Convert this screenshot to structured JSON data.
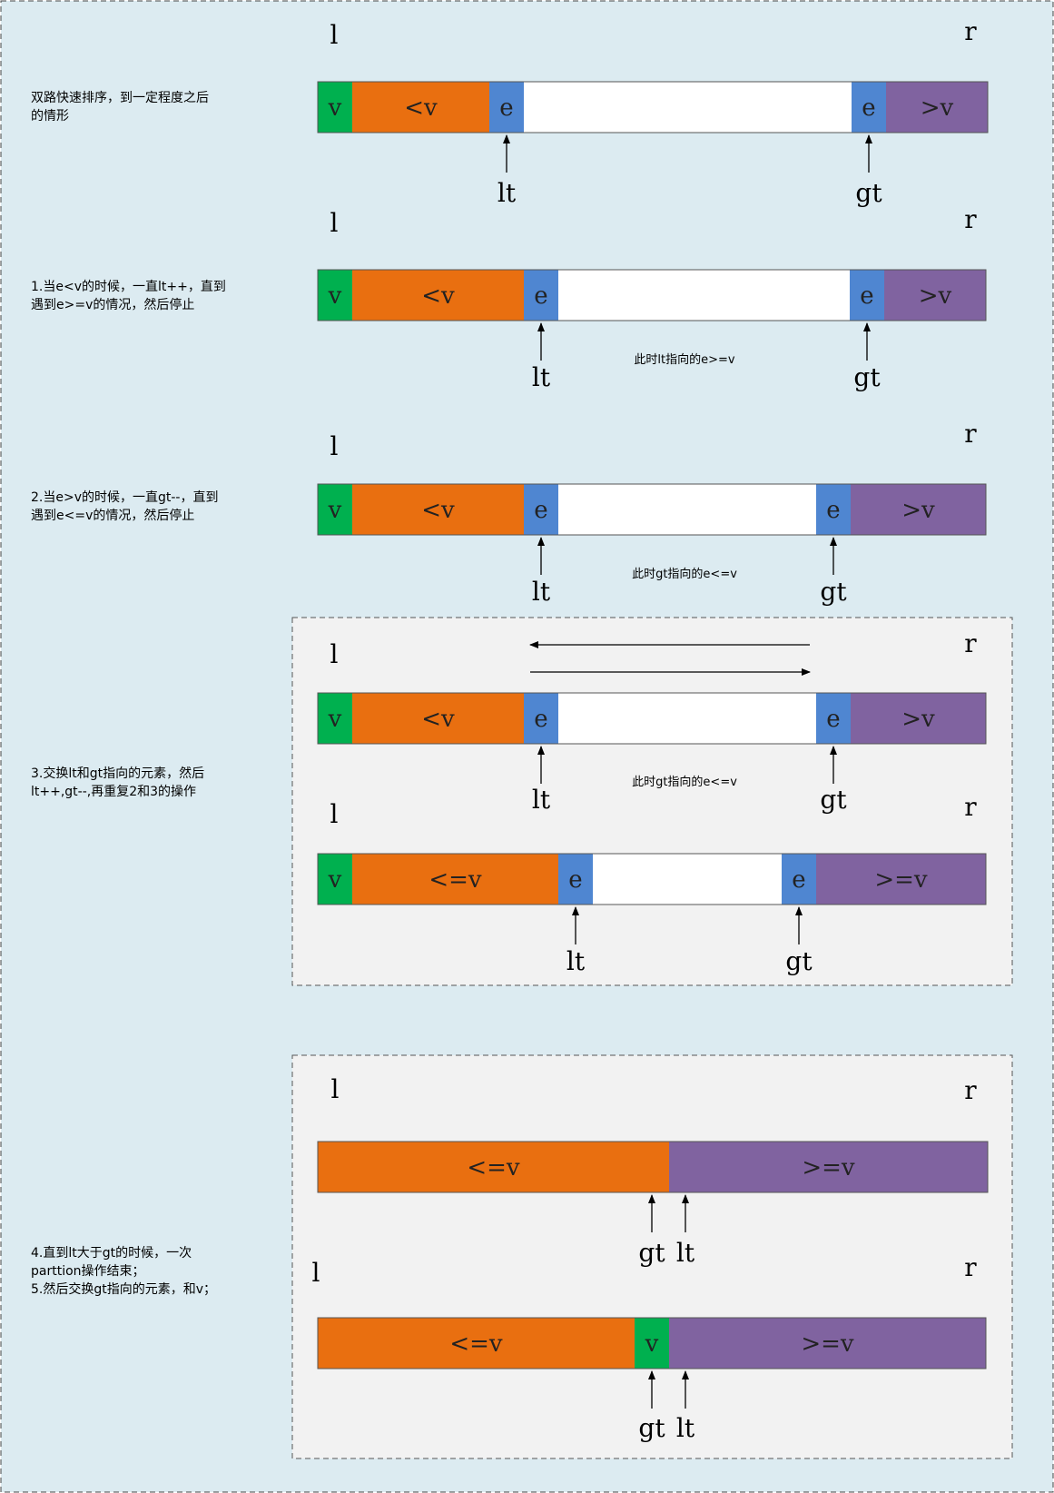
{
  "colors": {
    "background": "#dcebf1",
    "panel": "#f2f2f2",
    "v": "#00b04f",
    "lt_region": "#e96f10",
    "e": "#4f86d1",
    "unprocessed": "#ffffff",
    "gt_region": "#8063a0"
  },
  "boundary_labels": {
    "left": "l",
    "right": "r"
  },
  "pointer_labels": {
    "lt": "lt",
    "gt": "gt"
  },
  "steps": [
    {
      "description": [
        "双路快速排序，到一定程度之后",
        "的情形"
      ],
      "note": "",
      "segments": [
        {
          "label": "v",
          "color": "v"
        },
        {
          "label": "<v",
          "color": "lt_region"
        },
        {
          "label": "e",
          "color": "e"
        },
        {
          "label": "",
          "color": "unprocessed"
        },
        {
          "label": "e",
          "color": "e"
        },
        {
          "label": ">v",
          "color": "gt_region"
        }
      ]
    },
    {
      "description": [
        "1.当e<v的时候，一直lt++，直到",
        "遇到e>=v的情况，然后停止"
      ],
      "note": "此时lt指向的e>=v",
      "segments": [
        {
          "label": "v",
          "color": "v"
        },
        {
          "label": "<v",
          "color": "lt_region"
        },
        {
          "label": "e",
          "color": "e"
        },
        {
          "label": "",
          "color": "unprocessed"
        },
        {
          "label": "e",
          "color": "e"
        },
        {
          "label": ">v",
          "color": "gt_region"
        }
      ]
    },
    {
      "description": [
        "2.当e>v的时候，一直gt--，直到",
        "遇到e<=v的情况，然后停止"
      ],
      "note": "此时gt指向的e<=v",
      "segments": [
        {
          "label": "v",
          "color": "v"
        },
        {
          "label": "<v",
          "color": "lt_region"
        },
        {
          "label": "e",
          "color": "e"
        },
        {
          "label": "",
          "color": "unprocessed"
        },
        {
          "label": "e",
          "color": "e"
        },
        {
          "label": ">v",
          "color": "gt_region"
        }
      ]
    },
    {
      "description": [
        "3.交换lt和gt指向的元素，然后",
        "lt++,gt--,再重复2和3的操作"
      ],
      "note": "此时gt指向的e<=v",
      "segments": [
        {
          "label": "v",
          "color": "v"
        },
        {
          "label": "<v",
          "color": "lt_region"
        },
        {
          "label": "e",
          "color": "e"
        },
        {
          "label": "",
          "color": "unprocessed"
        },
        {
          "label": "e",
          "color": "e"
        },
        {
          "label": ">v",
          "color": "gt_region"
        }
      ]
    },
    {
      "description": [],
      "note": "",
      "segments": [
        {
          "label": "v",
          "color": "v"
        },
        {
          "label": "<=v",
          "color": "lt_region"
        },
        {
          "label": "e",
          "color": "e"
        },
        {
          "label": "",
          "color": "unprocessed"
        },
        {
          "label": "e",
          "color": "e"
        },
        {
          "label": ">=v",
          "color": "gt_region"
        }
      ]
    },
    {
      "description": [
        "4.直到lt大于gt的时候，一次",
        "parttion操作结束；",
        "5.然后交换gt指向的元素，和v；"
      ],
      "note": "",
      "segments": [
        {
          "label": "<=v",
          "color": "lt_region"
        },
        {
          "label": ">=v",
          "color": "gt_region"
        }
      ]
    },
    {
      "description": [],
      "note": "",
      "segments": [
        {
          "label": "<=v",
          "color": "lt_region"
        },
        {
          "label": "v",
          "color": "v"
        },
        {
          "label": ">=v",
          "color": "gt_region"
        }
      ]
    }
  ]
}
